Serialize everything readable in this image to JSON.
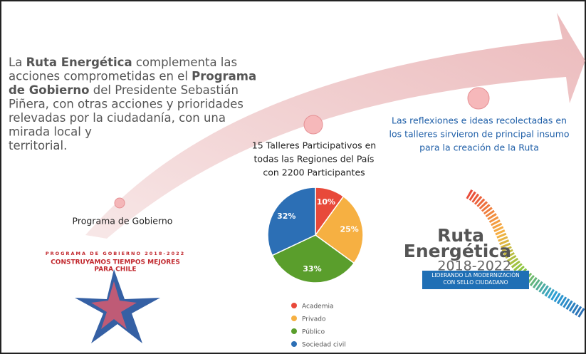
{
  "intro": {
    "lines": [
      [
        {
          "text": "La ",
          "bold": false
        },
        {
          "text": "Ruta Energética",
          "bold": true
        },
        {
          "text": " complementa las",
          "bold": false
        }
      ],
      [
        {
          "text": "acciones comprometidas en el ",
          "bold": false
        },
        {
          "text": "Programa",
          "bold": true
        }
      ],
      [
        {
          "text": "de Gobierno",
          "bold": true
        },
        {
          "text": " del Presidente Sebastián",
          "bold": false
        }
      ],
      [
        {
          "text": "Piñera, con otras acciones y prioridades",
          "bold": false
        }
      ],
      [
        {
          "text": "relevadas por la ciudadanía, con una",
          "bold": false
        }
      ],
      [
        {
          "text": "mirada local y",
          "bold": false
        }
      ],
      [
        {
          "text": "territorial.",
          "bold": false
        }
      ]
    ]
  },
  "milestones": [
    {
      "lines": [
        "Programa de Gobierno"
      ]
    },
    {
      "lines": [
        "15 Talleres Participativos en",
        "todas las Regiones del País",
        "con 2200 Participantes"
      ]
    },
    {
      "lines": [
        "Las reflexiones e ideas recolectadas en",
        "los talleres sirvieron de principal insumo",
        "para la creación de la Ruta"
      ]
    }
  ],
  "program_logo": {
    "lines": [
      "PROGRAMA DE GOBIERNO 2018-2022",
      "CONSTRUYAMOS TIEMPOS MEJORES",
      "PARA CHILE"
    ]
  },
  "ruta_logo": {
    "title": [
      "Ruta",
      "Energética"
    ],
    "years": "2018-2022",
    "tagline": [
      "LIDERANDO LA MODERNIZACIÓN",
      "CON SELLO CIUDADANO"
    ]
  },
  "chart_data": {
    "type": "pie",
    "categories": [
      "Academia",
      "Privado",
      "Público",
      "Sociedad civil"
    ],
    "values": [
      10,
      25,
      33,
      32
    ],
    "value_labels": [
      "10%",
      "25%",
      "33%",
      "32%"
    ],
    "colors": [
      "#e8493a",
      "#f6b042",
      "#5a9e2c",
      "#2c6fb5"
    ]
  }
}
